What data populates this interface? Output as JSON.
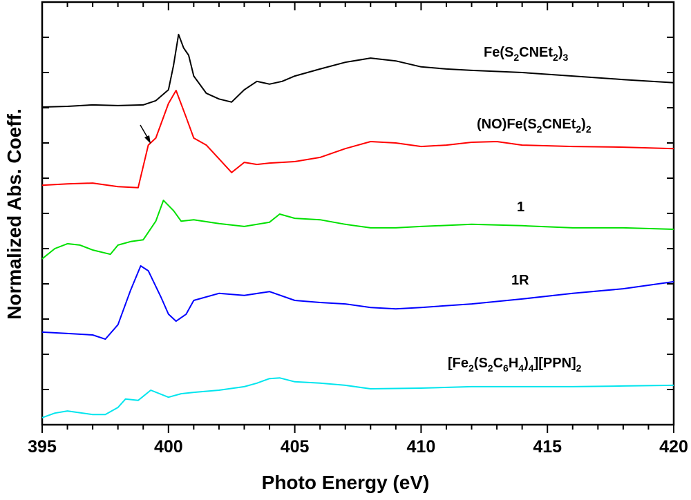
{
  "chart_data": {
    "type": "line",
    "title": "",
    "xlabel": "Photo Energy (eV)",
    "ylabel": "Normalized Abs. Coeff.",
    "xlim": [
      395,
      420
    ],
    "ylim": [
      0,
      12
    ],
    "xticks": [
      395,
      400,
      405,
      410,
      415,
      420
    ],
    "x_minor_step": 1,
    "y_tick_step": 1,
    "y_tick_labels_shown": false,
    "grid": false,
    "legend": "inline labels",
    "annotation": {
      "type": "arrow",
      "points_to": {
        "series": "(NO)Fe(S2CNEt2)2",
        "x": 399.3
      }
    },
    "series": [
      {
        "name": "Fe(S2CNEt2)3",
        "color": "#000000",
        "x": [
          395,
          396,
          397,
          398,
          399,
          399.5,
          400,
          400.2,
          400.4,
          400.6,
          400.8,
          401,
          401.5,
          402,
          402.5,
          403,
          403.5,
          404,
          404.5,
          405,
          406,
          407,
          408,
          409,
          410,
          411,
          412,
          414,
          416,
          418,
          420
        ],
        "y": [
          9.02,
          9.04,
          9.08,
          9.06,
          9.08,
          9.2,
          9.51,
          10.2,
          11.08,
          10.7,
          10.49,
          9.9,
          9.41,
          9.25,
          9.16,
          9.51,
          9.75,
          9.67,
          9.75,
          9.9,
          10.1,
          10.29,
          10.41,
          10.33,
          10.16,
          10.1,
          10.06,
          10.0,
          9.9,
          9.8,
          9.71
        ]
      },
      {
        "name": "(NO)Fe(S2CNEt2)2",
        "color": "#ff0000",
        "x": [
          395,
          396,
          397,
          398,
          398.8,
          399.2,
          399.5,
          400,
          400.3,
          400.7,
          401,
          401.5,
          402,
          402.5,
          403,
          403.5,
          404,
          405,
          406,
          407,
          408,
          409,
          410,
          411,
          412,
          413,
          414,
          416,
          418,
          420
        ],
        "y": [
          6.8,
          6.84,
          6.86,
          6.76,
          6.73,
          7.94,
          8.14,
          9.12,
          9.49,
          8.73,
          8.14,
          7.94,
          7.55,
          7.16,
          7.45,
          7.39,
          7.43,
          7.47,
          7.59,
          7.84,
          8.04,
          8.0,
          7.9,
          7.94,
          8.02,
          8.04,
          7.94,
          7.9,
          7.88,
          7.84
        ]
      },
      {
        "name": "1",
        "color": "#00e000",
        "x": [
          395,
          395.5,
          396,
          396.5,
          397,
          397.7,
          398,
          398.5,
          399,
          399.5,
          399.8,
          400.2,
          400.5,
          401,
          402,
          403,
          404,
          404.4,
          405,
          406,
          407,
          408,
          409,
          410,
          412,
          414,
          416,
          418,
          420
        ],
        "y": [
          4.71,
          5.0,
          5.14,
          5.1,
          4.96,
          4.84,
          5.1,
          5.2,
          5.25,
          5.78,
          6.37,
          6.08,
          5.78,
          5.82,
          5.71,
          5.63,
          5.75,
          5.98,
          5.86,
          5.82,
          5.69,
          5.59,
          5.59,
          5.63,
          5.69,
          5.65,
          5.59,
          5.59,
          5.55
        ]
      },
      {
        "name": "1R",
        "color": "#0000ff",
        "x": [
          395,
          396,
          397,
          397.5,
          398,
          398.5,
          398.9,
          399.2,
          399.7,
          400,
          400.3,
          400.7,
          401,
          402,
          403,
          404,
          405,
          406,
          407,
          408,
          409,
          410,
          412,
          414,
          416,
          418,
          420
        ],
        "y": [
          2.63,
          2.59,
          2.55,
          2.43,
          2.84,
          3.82,
          4.51,
          4.37,
          3.63,
          3.14,
          2.94,
          3.14,
          3.53,
          3.73,
          3.67,
          3.78,
          3.53,
          3.47,
          3.43,
          3.33,
          3.29,
          3.33,
          3.43,
          3.57,
          3.73,
          3.86,
          4.06
        ]
      },
      {
        "name": "[Fe2(S2C6H4)4][PPN]2",
        "color": "#00e5ee",
        "x": [
          395,
          395.5,
          396,
          397,
          397.5,
          398,
          398.3,
          398.8,
          399.3,
          400,
          400.5,
          401,
          402,
          403,
          403.5,
          404,
          404.4,
          405,
          406,
          407,
          408,
          410,
          412,
          414,
          416,
          418,
          420
        ],
        "y": [
          0.2,
          0.33,
          0.39,
          0.29,
          0.29,
          0.49,
          0.73,
          0.69,
          0.98,
          0.78,
          0.88,
          0.92,
          0.98,
          1.08,
          1.18,
          1.31,
          1.33,
          1.22,
          1.18,
          1.12,
          1.02,
          1.04,
          1.08,
          1.08,
          1.08,
          1.1,
          1.12
        ]
      }
    ],
    "series_labels": [
      "Fe(S2CNEt2)3",
      "(NO)Fe(S2CNEt2)2",
      "1",
      "1R",
      "[Fe2(S2C6H4)4][PPN]2"
    ]
  }
}
